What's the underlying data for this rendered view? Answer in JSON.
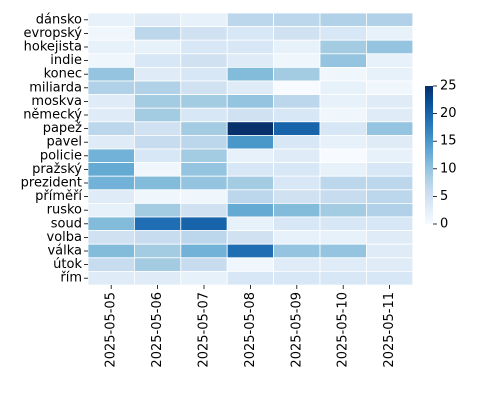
{
  "chart_data": {
    "type": "heatmap",
    "title": "",
    "xlabel": "",
    "ylabel": "",
    "x": [
      "2025-05-05",
      "2025-05-06",
      "2025-05-07",
      "2025-05-08",
      "2025-05-09",
      "2025-05-10",
      "2025-05-11"
    ],
    "y": [
      "dánsko",
      "evropský",
      "hokejista",
      "indie",
      "konec",
      "miliarda",
      "moskva",
      "německý",
      "papež",
      "pavel",
      "policie",
      "pražský",
      "prezident",
      "příměří",
      "rusko",
      "soud",
      "volba",
      "válka",
      "útok",
      "řím"
    ],
    "values": [
      [
        2,
        3,
        2,
        7,
        7,
        8,
        8
      ],
      [
        1,
        7,
        5,
        4,
        5,
        4,
        2
      ],
      [
        2,
        2,
        4,
        4,
        2,
        9,
        10
      ],
      [
        1,
        4,
        5,
        3,
        1,
        10,
        2
      ],
      [
        10,
        3,
        4,
        11,
        9,
        1,
        2
      ],
      [
        8,
        8,
        5,
        3,
        0,
        2,
        1
      ],
      [
        3,
        9,
        9,
        10,
        7,
        2,
        3
      ],
      [
        3,
        9,
        4,
        5,
        4,
        1,
        3
      ],
      [
        7,
        5,
        9,
        25,
        20,
        4,
        10
      ],
      [
        3,
        6,
        7,
        15,
        4,
        2,
        3
      ],
      [
        12,
        4,
        9,
        2,
        3,
        0,
        2
      ],
      [
        13,
        1,
        10,
        4,
        4,
        2,
        4
      ],
      [
        12,
        11,
        10,
        9,
        4,
        7,
        7
      ],
      [
        3,
        1,
        1,
        7,
        5,
        6,
        7
      ],
      [
        2,
        9,
        5,
        13,
        11,
        9,
        8
      ],
      [
        11,
        19,
        20,
        2,
        4,
        4,
        4
      ],
      [
        5,
        6,
        7,
        5,
        2,
        2,
        3
      ],
      [
        11,
        9,
        12,
        19,
        10,
        10,
        3
      ],
      [
        6,
        9,
        6,
        1,
        3,
        3,
        3
      ],
      [
        3,
        3,
        2,
        4,
        4,
        4,
        4
      ]
    ],
    "colorbar": {
      "min": 0,
      "max": 25,
      "ticks": [
        0,
        5,
        10,
        15,
        20,
        25
      ],
      "colormap": "Blues"
    },
    "grid": false,
    "colors": {
      "low": "#f7fbff",
      "high": "#08306b",
      "cell_border": "#ffffff"
    }
  }
}
